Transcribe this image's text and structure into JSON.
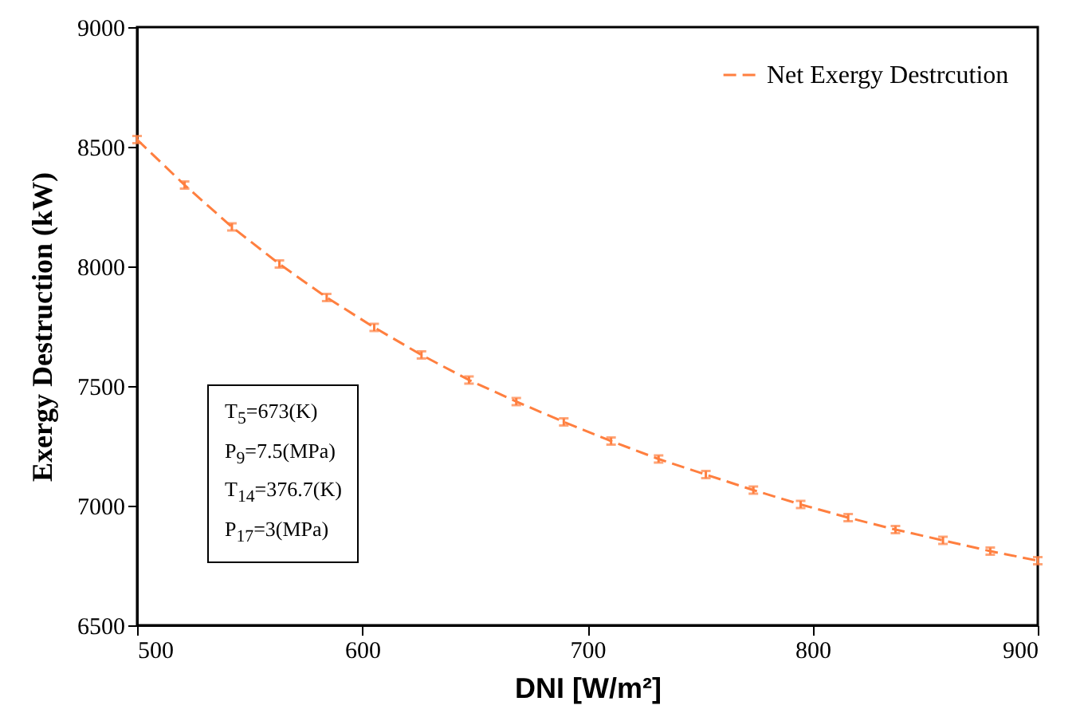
{
  "chart_data": {
    "type": "line",
    "x": [
      500,
      521.1,
      542.1,
      563.2,
      584.2,
      605.3,
      626.3,
      647.4,
      668.4,
      689.5,
      710.5,
      731.6,
      752.6,
      773.7,
      794.7,
      815.8,
      836.8,
      857.9,
      878.9,
      900
    ],
    "series": [
      {
        "name": "Net Exergy Destrcution",
        "color": "#ff7f3f",
        "values": [
          8530,
          8340,
          8165,
          8010,
          7870,
          7745,
          7630,
          7525,
          7435,
          7350,
          7270,
          7195,
          7130,
          7065,
          7005,
          6950,
          6900,
          6855,
          6810,
          6770
        ],
        "errors": [
          15,
          15,
          15,
          15,
          15,
          15,
          15,
          15,
          15,
          15,
          15,
          15,
          15,
          15,
          15,
          15,
          15,
          15,
          15,
          15
        ]
      }
    ],
    "xlabel": "DNI  [W/m²]",
    "ylabel": "Exergy Destruction (kW)",
    "xlim": [
      500,
      900
    ],
    "xticks": [
      500,
      600,
      700,
      800,
      900
    ],
    "ylim": [
      6500,
      9000
    ],
    "yticks": [
      6500,
      7000,
      7500,
      8000,
      8500,
      9000
    ],
    "annotations": [
      "T$_{5}$=673(K)",
      "P$_{9}$=7.5(MPa)",
      "T$_{14}$=376.7(K)",
      "P$_{17}$=3(MPa)"
    ],
    "legend": "top right",
    "line_style": "dashed",
    "marker": "none",
    "grid": false
  }
}
